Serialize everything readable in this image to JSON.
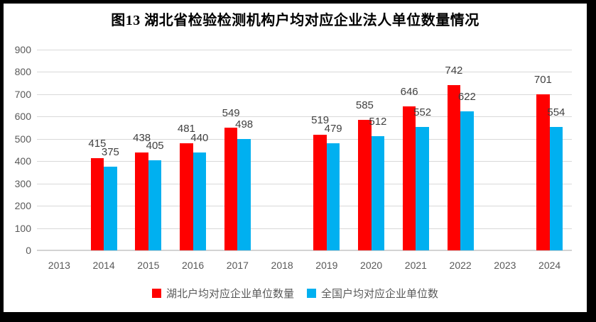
{
  "title": "图13  湖北省检验检测机构户均对应企业法人单位数量情况",
  "colors": {
    "frame": "#000000",
    "background": "#ffffff",
    "gridline": "#d9d9d9",
    "axis_line": "#d3d3d3",
    "tick_label": "#595959",
    "data_label": "#404040",
    "title": "#000000",
    "series_hubei": "#ff0000",
    "series_national": "#00b0f0"
  },
  "chart_data": {
    "type": "bar",
    "title": "图13  湖北省检验检测机构户均对应企业法人单位数量情况",
    "categories": [
      "2013",
      "2014",
      "2015",
      "2016",
      "2017",
      "2018",
      "2019",
      "2020",
      "2021",
      "2022",
      "2023",
      "2024"
    ],
    "series": [
      {
        "name": "湖北户均对应企业单位数量",
        "color": "#ff0000",
        "values": [
          null,
          415,
          438,
          481,
          549,
          null,
          519,
          585,
          646,
          742,
          null,
          701
        ]
      },
      {
        "name": "全国户均对应企业单位数",
        "color": "#00b0f0",
        "values": [
          null,
          375,
          405,
          440,
          498,
          null,
          479,
          512,
          552,
          622,
          null,
          554
        ]
      }
    ],
    "xlabel": "",
    "ylabel": "",
    "ylim": [
      0,
      900
    ],
    "ytick_step": 100,
    "yticks": [
      0,
      100,
      200,
      300,
      400,
      500,
      600,
      700,
      800,
      900
    ],
    "grid": true,
    "data_labels": true,
    "legend_position": "bottom"
  }
}
